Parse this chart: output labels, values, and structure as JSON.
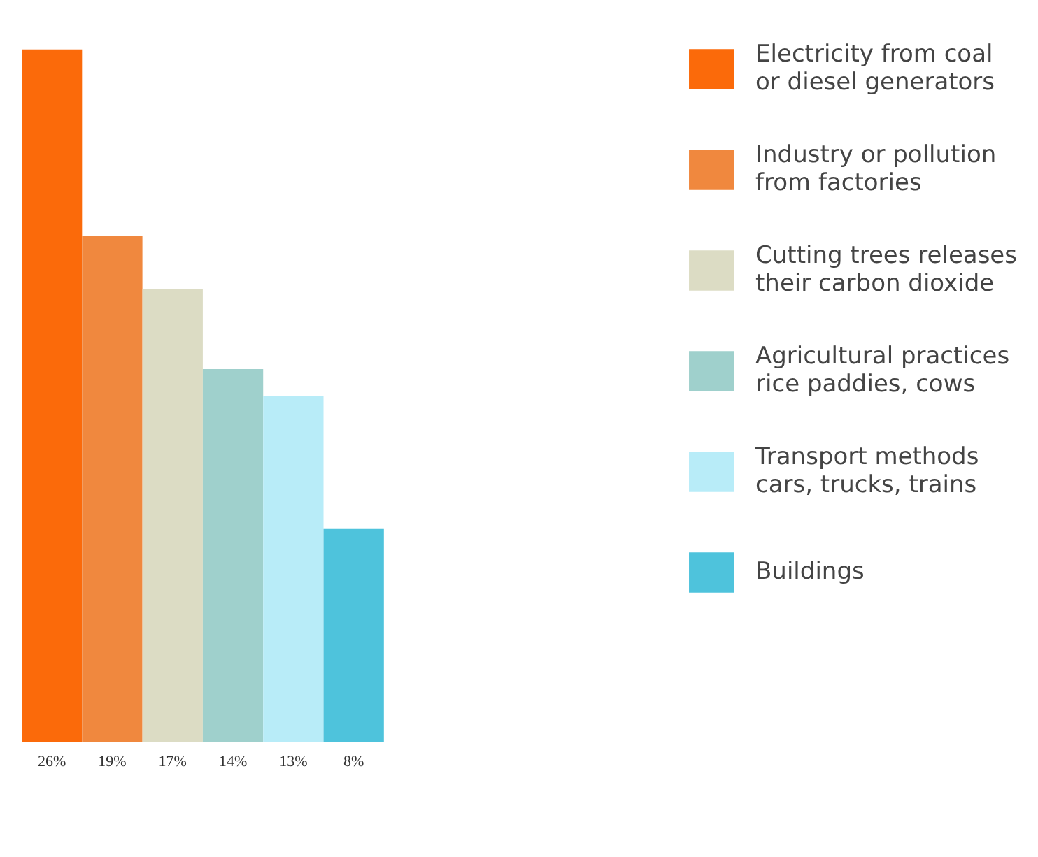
{
  "chart_data": {
    "type": "bar",
    "categories": [
      null,
      null,
      null,
      null,
      null,
      null
    ],
    "series": [
      {
        "name": "Electricity from coal or diesel generators",
        "color": "#fb6a0a",
        "values": [
          26,
          null,
          null,
          null,
          null,
          null
        ],
        "value_labels": [
          "26%",
          null,
          null,
          null,
          null,
          null
        ]
      },
      {
        "name": "Industry or pollution from factories",
        "color": "#f0883e",
        "values": [
          null,
          19,
          null,
          null,
          null,
          null
        ],
        "value_labels": [
          null,
          "19%",
          null,
          null,
          null,
          null
        ]
      },
      {
        "name": "Cutting trees releases their carbon dioxide",
        "color": "#dcdcc4",
        "values": [
          null,
          null,
          17,
          null,
          null,
          null
        ],
        "value_labels": [
          null,
          null,
          "17%",
          null,
          null,
          null
        ]
      },
      {
        "name": "Agricultural practices rice paddies, cows",
        "color": "#9fd0cc",
        "values": [
          null,
          null,
          null,
          14,
          null,
          null
        ],
        "value_labels": [
          null,
          null,
          null,
          "14%",
          null,
          null
        ]
      },
      {
        "name": "Transport methods cars, trucks, trains",
        "color": "#b8ecf8",
        "values": [
          null,
          null,
          null,
          null,
          13,
          null
        ],
        "value_labels": [
          null,
          null,
          null,
          null,
          "13%",
          null
        ]
      },
      {
        "name": "Buildings",
        "color": "#4ec3dc",
        "values": [
          null,
          null,
          null,
          null,
          null,
          8
        ],
        "value_labels": [
          null,
          null,
          null,
          null,
          null,
          "8%"
        ]
      }
    ],
    "stacked": true,
    "legend": "top right",
    "grid": false
  }
}
